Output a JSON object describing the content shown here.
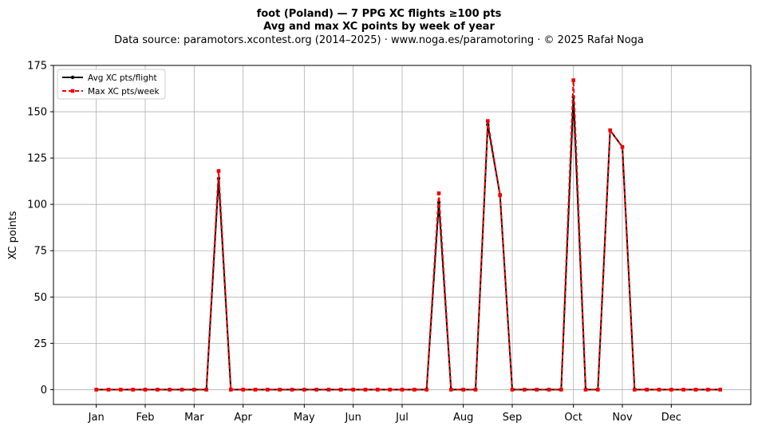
{
  "chart_data": {
    "type": "line",
    "title": "foot (Poland)  —  7 PPG XC flights ≥100 pts",
    "subtitle": "Avg and max XC points by week of year",
    "source_note": "Data source: paramotors.xcontest.org (2014–2025)  ·  www.noga.es/paramotoring  ·  © 2025 Rafał Noga",
    "xlabel": "",
    "ylabel": "XC points",
    "xlim": [
      -2.5,
      54.5
    ],
    "ylim": [
      -8,
      175
    ],
    "yticks": [
      0,
      25,
      50,
      75,
      100,
      125,
      150,
      175
    ],
    "xticks": [
      {
        "week": 1,
        "label": "Jan"
      },
      {
        "week": 5,
        "label": "Feb"
      },
      {
        "week": 9,
        "label": "Mar"
      },
      {
        "week": 13,
        "label": "Apr"
      },
      {
        "week": 18,
        "label": "May"
      },
      {
        "week": 22,
        "label": "Jun"
      },
      {
        "week": 26,
        "label": "Jul"
      },
      {
        "week": 31,
        "label": "Aug"
      },
      {
        "week": 35,
        "label": "Sep"
      },
      {
        "week": 40,
        "label": "Oct"
      },
      {
        "week": 44,
        "label": "Nov"
      },
      {
        "week": 48,
        "label": "Dec"
      }
    ],
    "grid": true,
    "legend_position": "top-left",
    "x": [
      1,
      2,
      3,
      4,
      5,
      6,
      7,
      8,
      9,
      10,
      11,
      12,
      13,
      14,
      15,
      16,
      17,
      18,
      19,
      20,
      21,
      22,
      23,
      24,
      25,
      26,
      27,
      28,
      29,
      30,
      31,
      32,
      33,
      34,
      35,
      36,
      37,
      38,
      39,
      40,
      41,
      42,
      43,
      44,
      45,
      46,
      47,
      48,
      49,
      50,
      51,
      52
    ],
    "series": [
      {
        "name": "Avg XC pts/flight",
        "color": "#000000",
        "style": "solid",
        "marker": "circle",
        "values": [
          0,
          0,
          0,
          0,
          0,
          0,
          0,
          0,
          0,
          0,
          114,
          0,
          0,
          0,
          0,
          0,
          0,
          0,
          0,
          0,
          0,
          0,
          0,
          0,
          0,
          0,
          0,
          0,
          101,
          0,
          0,
          0,
          143,
          105,
          0,
          0,
          0,
          0,
          0,
          158,
          0,
          0,
          140,
          131,
          0,
          0,
          0,
          0,
          0,
          0,
          0,
          0
        ]
      },
      {
        "name": "Max XC pts/week",
        "color": "#ee0000",
        "style": "dashed",
        "marker": "square",
        "values": [
          0,
          0,
          0,
          0,
          0,
          0,
          0,
          0,
          0,
          0,
          118,
          0,
          0,
          0,
          0,
          0,
          0,
          0,
          0,
          0,
          0,
          0,
          0,
          0,
          0,
          0,
          0,
          0,
          106,
          0,
          0,
          0,
          145,
          105,
          0,
          0,
          0,
          0,
          0,
          167,
          0,
          0,
          140,
          131,
          0,
          0,
          0,
          0,
          0,
          0,
          0,
          0
        ]
      }
    ]
  }
}
